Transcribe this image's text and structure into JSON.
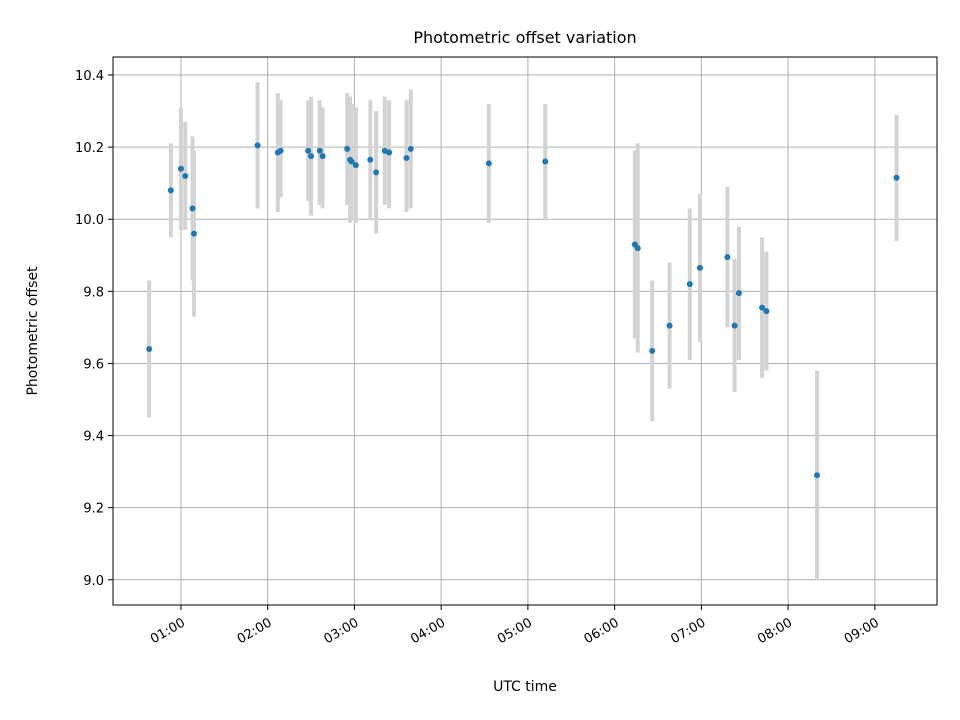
{
  "chart_data": {
    "type": "scatter",
    "title": "Photometric offset variation",
    "xlabel": "UTC time",
    "ylabel": "Photometric offset",
    "x_unit": "UTC time",
    "xlim": [
      "00:13",
      "09:43"
    ],
    "ylim": [
      8.93,
      10.45
    ],
    "x_ticks": [
      "01:00",
      "02:00",
      "03:00",
      "04:00",
      "05:00",
      "06:00",
      "07:00",
      "08:00",
      "09:00"
    ],
    "y_ticks": [
      "9.0",
      "9.2",
      "9.4",
      "9.6",
      "9.8",
      "10.0",
      "10.2",
      "10.4"
    ],
    "y_tick_values": [
      9.0,
      9.2,
      9.4,
      9.6,
      9.8,
      10.0,
      10.2,
      10.4
    ],
    "grid": true,
    "marker_color": "#1f77b4",
    "errorbar_color": "#d3d3d3",
    "points": [
      {
        "x": "00:38",
        "y": 9.64,
        "ylo": 9.45,
        "yhi": 9.83
      },
      {
        "x": "00:53",
        "y": 10.08,
        "ylo": 9.95,
        "yhi": 10.21
      },
      {
        "x": "01:00",
        "y": 10.14,
        "ylo": 9.97,
        "yhi": 10.31
      },
      {
        "x": "01:03",
        "y": 10.12,
        "ylo": 9.97,
        "yhi": 10.27
      },
      {
        "x": "01:08",
        "y": 10.03,
        "ylo": 9.83,
        "yhi": 10.23
      },
      {
        "x": "01:09",
        "y": 9.96,
        "ylo": 9.73,
        "yhi": 10.19
      },
      {
        "x": "01:53",
        "y": 10.205,
        "ylo": 10.03,
        "yhi": 10.38
      },
      {
        "x": "02:07",
        "y": 10.185,
        "ylo": 10.02,
        "yhi": 10.35
      },
      {
        "x": "02:09",
        "y": 10.19,
        "ylo": 10.06,
        "yhi": 10.33
      },
      {
        "x": "02:28",
        "y": 10.19,
        "ylo": 10.05,
        "yhi": 10.33
      },
      {
        "x": "02:30",
        "y": 10.175,
        "ylo": 10.01,
        "yhi": 10.34
      },
      {
        "x": "02:36",
        "y": 10.19,
        "ylo": 10.04,
        "yhi": 10.33
      },
      {
        "x": "02:38",
        "y": 10.175,
        "ylo": 10.03,
        "yhi": 10.31
      },
      {
        "x": "02:55",
        "y": 10.195,
        "ylo": 10.04,
        "yhi": 10.35
      },
      {
        "x": "02:57",
        "y": 10.165,
        "ylo": 9.99,
        "yhi": 10.34
      },
      {
        "x": "02:58",
        "y": 10.16,
        "ylo": 10.0,
        "yhi": 10.32
      },
      {
        "x": "03:01",
        "y": 10.15,
        "ylo": 9.99,
        "yhi": 10.31
      },
      {
        "x": "03:11",
        "y": 10.165,
        "ylo": 10.0,
        "yhi": 10.33
      },
      {
        "x": "03:15",
        "y": 10.13,
        "ylo": 9.96,
        "yhi": 10.3
      },
      {
        "x": "03:21",
        "y": 10.19,
        "ylo": 10.04,
        "yhi": 10.34
      },
      {
        "x": "03:24",
        "y": 10.185,
        "ylo": 10.03,
        "yhi": 10.33
      },
      {
        "x": "03:36",
        "y": 10.17,
        "ylo": 10.02,
        "yhi": 10.33
      },
      {
        "x": "03:39",
        "y": 10.195,
        "ylo": 10.03,
        "yhi": 10.36
      },
      {
        "x": "04:33",
        "y": 10.155,
        "ylo": 9.99,
        "yhi": 10.32
      },
      {
        "x": "05:12",
        "y": 10.16,
        "ylo": 10.0,
        "yhi": 10.32
      },
      {
        "x": "06:14",
        "y": 9.93,
        "ylo": 9.67,
        "yhi": 10.19
      },
      {
        "x": "06:16",
        "y": 9.92,
        "ylo": 9.63,
        "yhi": 10.21
      },
      {
        "x": "06:26",
        "y": 9.635,
        "ylo": 9.44,
        "yhi": 9.83
      },
      {
        "x": "06:38",
        "y": 9.705,
        "ylo": 9.53,
        "yhi": 9.88
      },
      {
        "x": "06:52",
        "y": 9.82,
        "ylo": 9.61,
        "yhi": 10.03
      },
      {
        "x": "06:59",
        "y": 9.865,
        "ylo": 9.66,
        "yhi": 10.07
      },
      {
        "x": "07:18",
        "y": 9.895,
        "ylo": 9.7,
        "yhi": 10.09
      },
      {
        "x": "07:23",
        "y": 9.705,
        "ylo": 9.52,
        "yhi": 9.89
      },
      {
        "x": "07:26",
        "y": 9.795,
        "ylo": 9.61,
        "yhi": 9.98
      },
      {
        "x": "07:42",
        "y": 9.755,
        "ylo": 9.56,
        "yhi": 9.95
      },
      {
        "x": "07:45",
        "y": 9.745,
        "ylo": 9.58,
        "yhi": 9.91
      },
      {
        "x": "08:20",
        "y": 9.29,
        "ylo": 9.0,
        "yhi": 9.58
      },
      {
        "x": "09:15",
        "y": 10.115,
        "ylo": 9.94,
        "yhi": 10.29
      }
    ]
  }
}
